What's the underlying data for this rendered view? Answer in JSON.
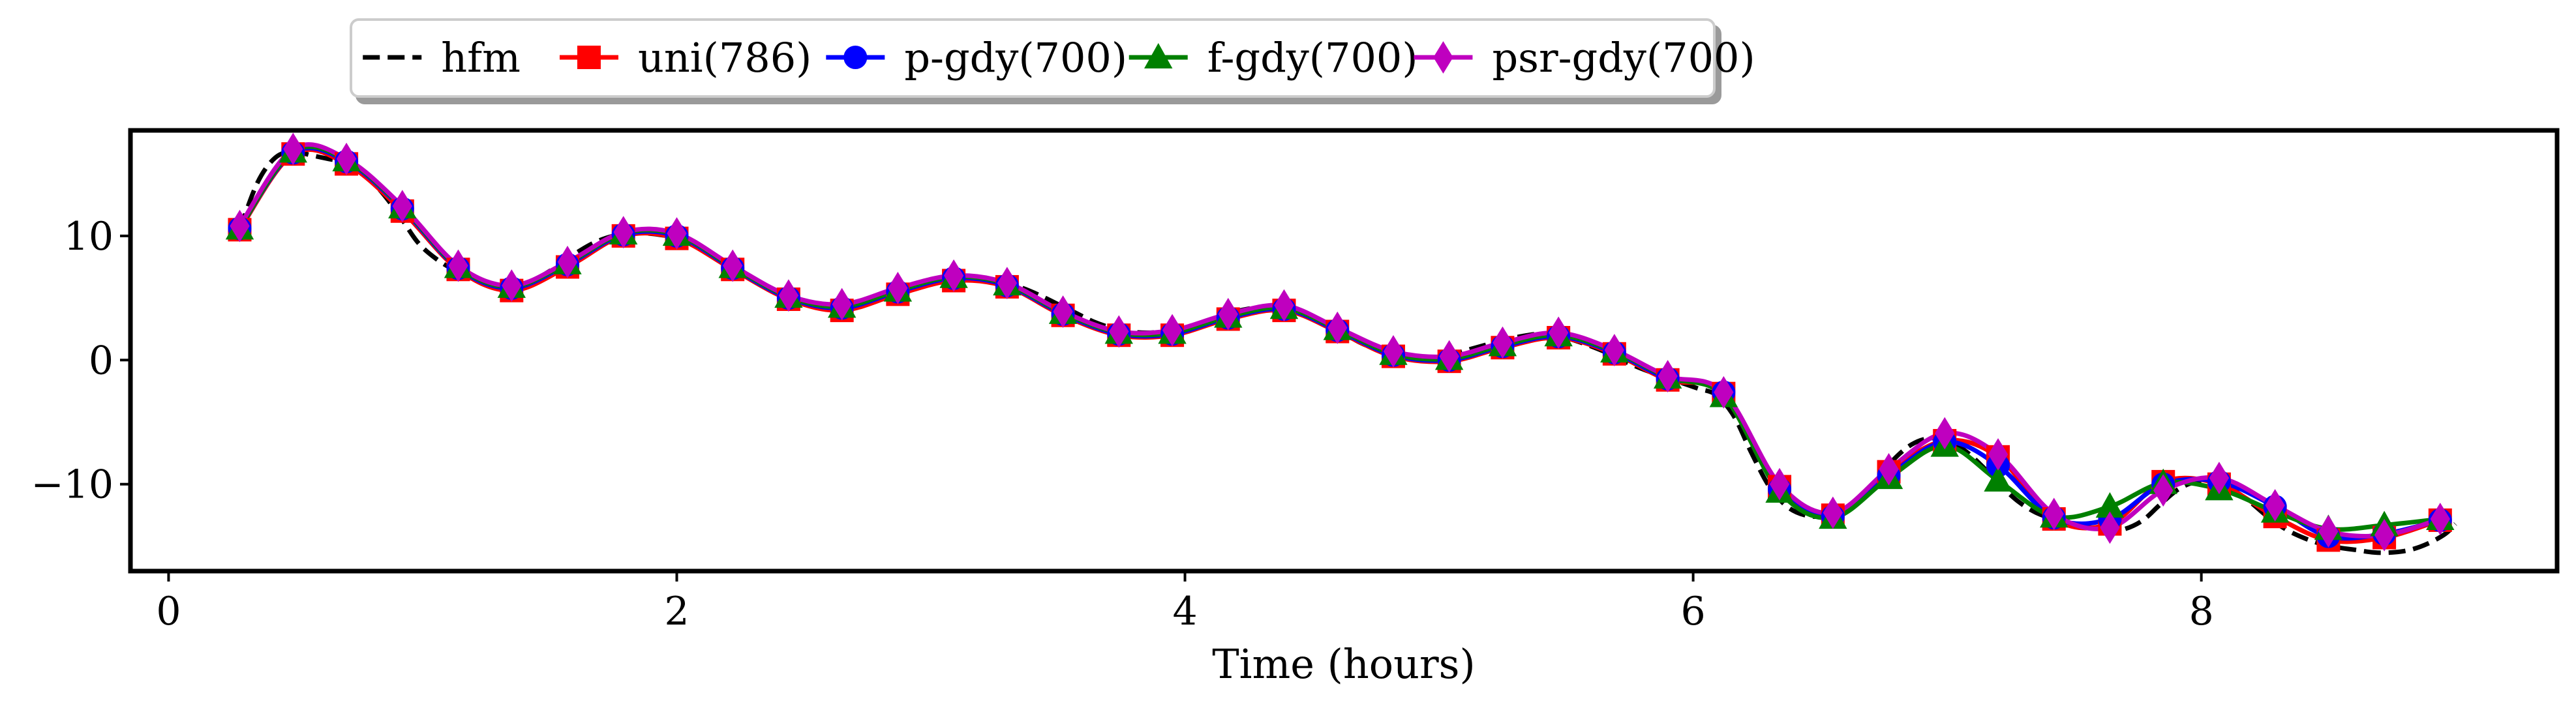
{
  "chart_data": {
    "type": "line",
    "title": "",
    "xlabel": "Time (hours)",
    "ylabel": "",
    "xlim": [
      -0.15,
      9.4
    ],
    "ylim": [
      -17,
      18.5
    ],
    "xticks": [
      0,
      2,
      4,
      6,
      8
    ],
    "yticks": [
      -10,
      0,
      10
    ],
    "xtick_labels": [
      "0",
      "2",
      "4",
      "6",
      "8"
    ],
    "ytick_labels": [
      "−10",
      "0",
      "10"
    ],
    "grid": false,
    "legend_position": "top-center",
    "series": [
      {
        "name": "hfm",
        "color": "#000000",
        "dash": "dashed",
        "marker": "none",
        "x": [
          0.28,
          0.35,
          0.42,
          0.49,
          0.56,
          0.63,
          0.7,
          0.77,
          0.84,
          0.91,
          0.98,
          1.05,
          1.12,
          1.19,
          1.26,
          1.33,
          1.4,
          1.47,
          1.54,
          1.61,
          1.68,
          1.75,
          1.82,
          1.89,
          1.96,
          2.03,
          2.1,
          2.17,
          2.24,
          2.31,
          2.38,
          2.45,
          2.52,
          2.59,
          2.66,
          2.73,
          2.8,
          2.87,
          2.94,
          3.01,
          3.08,
          3.15,
          3.22,
          3.29,
          3.36,
          3.43,
          3.5,
          3.57,
          3.64,
          3.71,
          3.78,
          3.85,
          3.92,
          3.99,
          4.06,
          4.13,
          4.2,
          4.27,
          4.34,
          4.41,
          4.48,
          4.55,
          4.62,
          4.69,
          4.76,
          4.83,
          4.9,
          4.97,
          5.04,
          5.11,
          5.18,
          5.25,
          5.32,
          5.39,
          5.46,
          5.53,
          5.6,
          5.67,
          5.74,
          5.81,
          5.88,
          5.95,
          6.02,
          6.09,
          6.16,
          6.23,
          6.3,
          6.37,
          6.44,
          6.51,
          6.58,
          6.65,
          6.72,
          6.79,
          6.86,
          6.93,
          7.0,
          7.07,
          7.14,
          7.21,
          7.28,
          7.35,
          7.42,
          7.49,
          7.56,
          7.63,
          7.7,
          7.77,
          7.84,
          7.91,
          7.98,
          8.05,
          8.12,
          8.19,
          8.26,
          8.33,
          8.4,
          8.47,
          8.54,
          8.61,
          8.68,
          8.75,
          8.82,
          8.89,
          8.96,
          9.0
        ],
        "y": [
          10.5,
          14.3,
          16.3,
          16.8,
          16.5,
          16.2,
          15.9,
          15.0,
          13.5,
          11.6,
          9.5,
          8.2,
          7.3,
          6.6,
          6.0,
          5.8,
          6.1,
          6.8,
          7.7,
          8.7,
          9.5,
          10.0,
          10.2,
          10.2,
          10.0,
          9.6,
          8.9,
          8.0,
          7.2,
          6.3,
          5.6,
          4.9,
          4.5,
          4.3,
          4.2,
          4.4,
          4.9,
          5.4,
          5.9,
          6.3,
          6.6,
          6.6,
          6.5,
          6.2,
          5.8,
          5.2,
          4.5,
          3.8,
          3.1,
          2.6,
          2.3,
          2.2,
          2.3,
          2.5,
          2.9,
          3.4,
          3.9,
          4.2,
          4.3,
          4.1,
          3.6,
          2.9,
          2.2,
          1.4,
          0.8,
          0.4,
          0.2,
          0.2,
          0.4,
          0.8,
          1.2,
          1.6,
          1.9,
          2.1,
          2.0,
          1.6,
          1.1,
          0.5,
          -0.2,
          -0.8,
          -1.3,
          -1.8,
          -2.3,
          -2.8,
          -4.5,
          -7.5,
          -10.2,
          -11.8,
          -12.5,
          -12.6,
          -12.3,
          -11.3,
          -9.8,
          -8.0,
          -6.8,
          -6.3,
          -6.5,
          -7.3,
          -8.6,
          -10.1,
          -11.4,
          -12.3,
          -12.8,
          -13.1,
          -13.5,
          -13.8,
          -13.6,
          -12.9,
          -11.6,
          -10.4,
          -9.8,
          -9.8,
          -10.4,
          -11.4,
          -12.6,
          -13.6,
          -14.3,
          -14.8,
          -15.1,
          -15.3,
          -15.5,
          -15.5,
          -15.3,
          -14.8,
          -14.0,
          -13.2
        ]
      },
      {
        "name": "uni(786)",
        "color": "#ff0000",
        "dash": "solid",
        "marker": "square",
        "x": [
          0.28,
          0.49,
          0.7,
          0.92,
          1.14,
          1.35,
          1.57,
          1.79,
          2.0,
          2.22,
          2.44,
          2.65,
          2.87,
          3.09,
          3.3,
          3.52,
          3.74,
          3.95,
          4.17,
          4.39,
          4.6,
          4.82,
          5.04,
          5.25,
          5.47,
          5.69,
          5.9,
          6.12,
          6.34,
          6.55,
          6.77,
          6.99,
          7.2,
          7.42,
          7.64,
          7.85,
          8.07,
          8.29,
          8.5,
          8.72,
          8.94
        ],
        "y": [
          10.5,
          16.6,
          15.8,
          12.0,
          7.3,
          5.6,
          7.5,
          10.0,
          9.8,
          7.3,
          4.9,
          4.0,
          5.3,
          6.4,
          5.9,
          3.6,
          2.0,
          2.0,
          3.3,
          4.0,
          2.3,
          0.3,
          -0.1,
          1.0,
          1.8,
          0.5,
          -1.6,
          -2.7,
          -10.2,
          -12.5,
          -9.0,
          -6.5,
          -7.8,
          -12.8,
          -13.2,
          -9.8,
          -10.0,
          -12.6,
          -14.5,
          -14.3,
          -12.9
        ]
      },
      {
        "name": "p-gdy(700)",
        "color": "#0000ff",
        "dash": "solid",
        "marker": "circle",
        "x": [
          0.28,
          0.49,
          0.7,
          0.92,
          1.14,
          1.35,
          1.57,
          1.79,
          2.0,
          2.22,
          2.44,
          2.65,
          2.87,
          3.09,
          3.3,
          3.52,
          3.74,
          3.95,
          4.17,
          4.39,
          4.6,
          4.82,
          5.04,
          5.25,
          5.47,
          5.69,
          5.9,
          6.12,
          6.34,
          6.55,
          6.77,
          6.99,
          7.2,
          7.42,
          7.64,
          7.85,
          8.07,
          8.29,
          8.5,
          8.72,
          8.94
        ],
        "y": [
          10.6,
          16.7,
          16.0,
          12.2,
          7.4,
          5.8,
          7.7,
          10.1,
          10.0,
          7.4,
          5.0,
          4.2,
          5.5,
          6.6,
          6.0,
          3.7,
          2.1,
          2.1,
          3.4,
          4.1,
          2.4,
          0.4,
          0.0,
          1.1,
          1.9,
          0.6,
          -1.5,
          -2.6,
          -10.4,
          -12.6,
          -9.3,
          -6.6,
          -8.5,
          -12.7,
          -12.8,
          -10.0,
          -9.8,
          -11.8,
          -14.2,
          -14.0,
          -12.9
        ]
      },
      {
        "name": "f-gdy(700)",
        "color": "#008000",
        "dash": "solid",
        "marker": "triangle",
        "x": [
          0.28,
          0.49,
          0.7,
          0.92,
          1.14,
          1.35,
          1.57,
          1.79,
          2.0,
          2.22,
          2.44,
          2.65,
          2.87,
          3.09,
          3.3,
          3.52,
          3.74,
          3.95,
          4.17,
          4.39,
          4.6,
          4.82,
          5.04,
          5.25,
          5.47,
          5.69,
          5.9,
          6.12,
          6.34,
          6.55,
          6.77,
          6.99,
          7.2,
          7.42,
          7.64,
          7.85,
          8.07,
          8.29,
          8.5,
          8.72,
          8.94
        ],
        "y": [
          10.6,
          16.8,
          16.1,
          12.3,
          7.5,
          5.9,
          7.8,
          10.2,
          10.1,
          7.5,
          5.1,
          4.3,
          5.6,
          6.7,
          6.1,
          3.8,
          2.2,
          2.2,
          3.5,
          4.2,
          2.5,
          0.5,
          0.1,
          1.2,
          2.0,
          0.7,
          -1.4,
          -2.9,
          -10.6,
          -12.7,
          -9.5,
          -6.9,
          -9.7,
          -12.6,
          -11.8,
          -9.9,
          -10.4,
          -12.2,
          -13.6,
          -13.3,
          -12.8
        ]
      },
      {
        "name": "psr-gdy(700)",
        "color": "#bf00bf",
        "dash": "solid",
        "marker": "thin_diamond",
        "x": [
          0.28,
          0.49,
          0.7,
          0.92,
          1.14,
          1.35,
          1.57,
          1.79,
          2.0,
          2.22,
          2.44,
          2.65,
          2.87,
          3.09,
          3.3,
          3.52,
          3.74,
          3.95,
          4.17,
          4.39,
          4.6,
          4.82,
          5.04,
          5.25,
          5.47,
          5.69,
          5.9,
          6.12,
          6.34,
          6.55,
          6.77,
          6.99,
          7.2,
          7.42,
          7.64,
          7.85,
          8.07,
          8.29,
          8.5,
          8.72,
          8.94
        ],
        "y": [
          10.8,
          17.0,
          16.2,
          12.4,
          7.6,
          6.0,
          7.9,
          10.3,
          10.2,
          7.6,
          5.2,
          4.5,
          5.8,
          6.8,
          6.2,
          3.9,
          2.3,
          2.4,
          3.7,
          4.4,
          2.6,
          0.7,
          0.3,
          1.4,
          2.2,
          0.8,
          -1.3,
          -2.6,
          -10.0,
          -12.3,
          -8.8,
          -5.9,
          -7.6,
          -12.4,
          -13.5,
          -10.5,
          -9.5,
          -11.7,
          -13.8,
          -14.1,
          -12.8
        ]
      }
    ]
  }
}
